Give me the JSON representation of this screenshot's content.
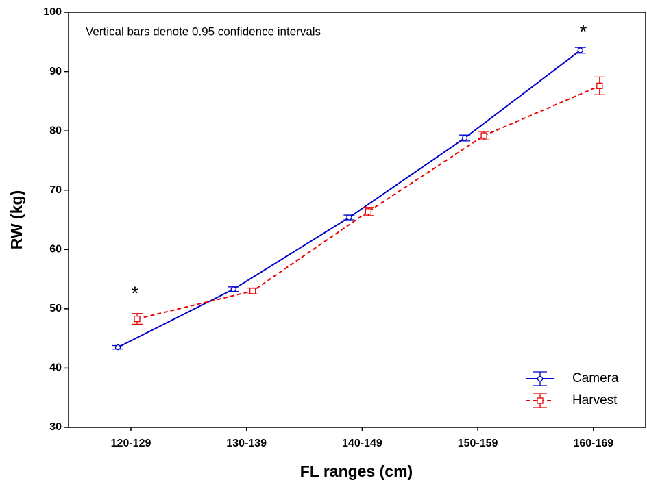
{
  "chart_data": {
    "type": "line",
    "x_label": "FL ranges (cm)",
    "y_label": "RW (kg)",
    "annotations": [
      "Vertical bars denote 0.95 confidence intervals",
      "*",
      "*"
    ],
    "categories": [
      "120-129",
      "130-139",
      "140-149",
      "150-159",
      "160-169"
    ],
    "series": [
      {
        "name": "Camera",
        "color": "#0000cc",
        "dash": "solid",
        "marker": "circle",
        "values": [
          43.5,
          53.3,
          65.4,
          78.8,
          93.6
        ],
        "errors": [
          0.3,
          0.4,
          0.4,
          0.5,
          0.5
        ]
      },
      {
        "name": "Harvest",
        "color": "#ee0000",
        "dash": "dashed",
        "marker": "square",
        "values": [
          48.3,
          53.0,
          66.4,
          79.2,
          87.6
        ],
        "errors": [
          0.9,
          0.5,
          0.7,
          0.7,
          1.5
        ]
      }
    ],
    "ylim": [
      30,
      100
    ],
    "yticks": [
      30,
      40,
      50,
      60,
      70,
      80,
      90,
      100
    ],
    "legend": "lower right"
  }
}
